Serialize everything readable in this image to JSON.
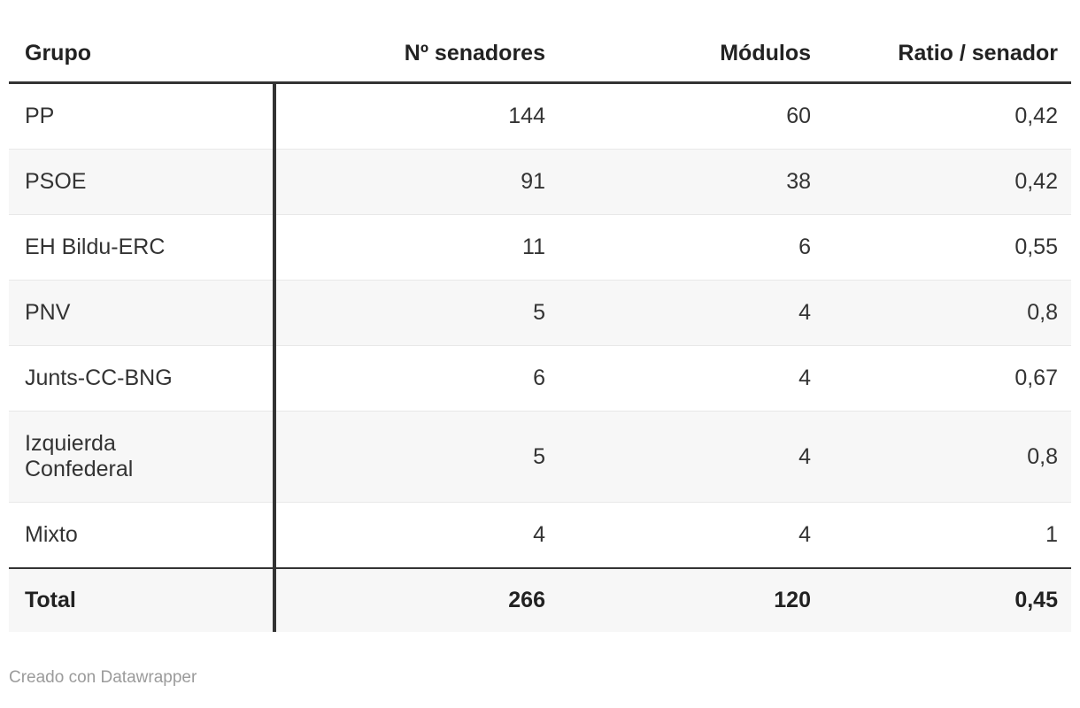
{
  "chart_data": {
    "type": "table",
    "columns": [
      "Grupo",
      "Nº senadores",
      "Módulos",
      "Ratio / senador"
    ],
    "rows": [
      [
        "PP",
        "144",
        "60",
        "0,42"
      ],
      [
        "PSOE",
        "91",
        "38",
        "0,42"
      ],
      [
        "EH Bildu-ERC",
        "11",
        "6",
        "0,55"
      ],
      [
        "PNV",
        "5",
        "4",
        "0,8"
      ],
      [
        "Junts-CC-BNG",
        "6",
        "4",
        "0,67"
      ],
      [
        "Izquierda Confederal",
        "5",
        "4",
        "0,8"
      ],
      [
        "Mixto",
        "4",
        "4",
        "1"
      ]
    ],
    "total_row": [
      "Total",
      "266",
      "120",
      "0,45"
    ],
    "layout_hints": {
      "zebra_rows": "alternating starting with second data row",
      "first_column_divider": true,
      "numeric_columns_right_aligned": true
    }
  },
  "footer": {
    "credit": "Creado con Datawrapper"
  },
  "colors": {
    "heavy_border": "#333333",
    "row_separator": "#e8e8e8",
    "zebra_background": "#f7f7f7",
    "body_text": "#333333",
    "header_text": "#222222",
    "muted_text": "#9b9b9b",
    "page_background": "#ffffff"
  }
}
